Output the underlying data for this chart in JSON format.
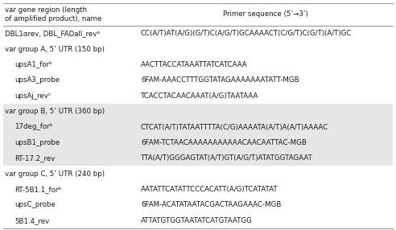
{
  "col1_header_line1": "var gene region (length",
  "col1_header_line2": "of amplified product), name",
  "col2_header": "Primer sequence (5’→3’)",
  "rows": [
    {
      "name": "DBL1αrev, DBL_FADall_revᵃ",
      "sequence": "CC(A/T)AT(A/G)(G/T)C(A/G/T)GCAAAACT(C/G/T)C(G/T)(A/T)GC",
      "indent": 0,
      "is_section": false,
      "shaded": false
    },
    {
      "name": "var group A, 5’ UTR (150 bp)",
      "sequence": "",
      "indent": 0,
      "is_section": true,
      "shaded": false
    },
    {
      "name": "upsA1_forᵇ",
      "sequence": "AACTTACCATAAATTATCATCAAA",
      "indent": 1,
      "is_section": false,
      "shaded": false
    },
    {
      "name": "upsA3_probe",
      "sequence": "6FAM-AAACCTTTGGTATAGAAAAAAATATT-MGB",
      "indent": 1,
      "is_section": false,
      "shaded": false
    },
    {
      "name": "upsAj_revᶜ",
      "sequence": "TCACCTACAACAAAT(A/G)TAATAAA",
      "indent": 1,
      "is_section": false,
      "shaded": false
    },
    {
      "name": "var group B, 5’ UTR (360 bp)",
      "sequence": "",
      "indent": 0,
      "is_section": true,
      "shaded": true
    },
    {
      "name": "17deg_forᵇ",
      "sequence": "CTCAT(A/T)TATAATTTTA(C/G)AAAATA(A/T)A(A/T)AAAAC",
      "indent": 1,
      "is_section": false,
      "shaded": true
    },
    {
      "name": "upsB1_probe",
      "sequence": "6FAM-TCTAACAAAAAAAAAAACAACAATTAC-MGB",
      "indent": 1,
      "is_section": false,
      "shaded": true
    },
    {
      "name": "RT-17.2_rev",
      "sequence": "TTA(A/T)GGGAGTAT(A/T)GT(A/G/T)ATATGGTAGAAT",
      "indent": 1,
      "is_section": false,
      "shaded": true
    },
    {
      "name": "var group C, 5’ UTR (240 bp)",
      "sequence": "",
      "indent": 0,
      "is_section": true,
      "shaded": false
    },
    {
      "name": "RT-5B1.1_forᵇ",
      "sequence": "AATATTCATATTCCCACATT(A/G)TCATATAT",
      "indent": 1,
      "is_section": false,
      "shaded": false
    },
    {
      "name": "upsC_probe",
      "sequence": "6FAM-ACATATAATACGACTAAGAAAC-MGB",
      "indent": 1,
      "is_section": false,
      "shaded": false
    },
    {
      "name": "5B1.4_rev",
      "sequence": "ATTATGTGGTAATATCATGTAATGG",
      "indent": 1,
      "is_section": false,
      "shaded": false
    }
  ],
  "shaded_color": "#e6e6e6",
  "white_color": "#ffffff",
  "text_color": "#1a1a1a",
  "line_color": "#999999",
  "font_size": 6.2,
  "col_split": 0.345
}
